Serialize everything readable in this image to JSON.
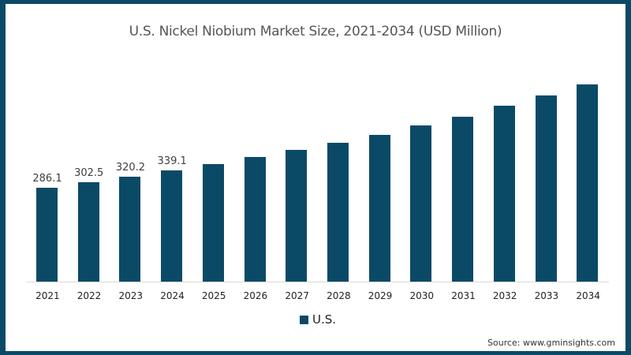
{
  "chart_data": {
    "type": "bar",
    "title": "U.S. Nickel Niobium Market Size, 2021-2034 (USD Million)",
    "xlabel": "",
    "ylabel": "",
    "categories": [
      "2021",
      "2022",
      "2023",
      "2024",
      "2025",
      "2026",
      "2027",
      "2028",
      "2029",
      "2030",
      "2031",
      "2032",
      "2033",
      "2034"
    ],
    "series": [
      {
        "name": "U.S.",
        "color": "#0b4a66",
        "values": [
          286.1,
          302.5,
          320.2,
          339.1,
          358,
          379,
          401,
          423,
          448,
          475,
          503,
          535,
          567,
          601
        ]
      }
    ],
    "data_labels": [
      "286.1",
      "302.5",
      "320.2",
      "339.1",
      "",
      "",
      "",
      "",
      "",
      "",
      "",
      "",
      "",
      ""
    ],
    "grid": false,
    "legend_position": "bottom",
    "ylim": [
      0,
      650
    ]
  },
  "legend": {
    "label": "U.S.",
    "color": "#0b4a66"
  },
  "source": "Source: www.gminsights.com",
  "colors": {
    "bar": "#0b4a66",
    "border": "#0b4a66"
  }
}
